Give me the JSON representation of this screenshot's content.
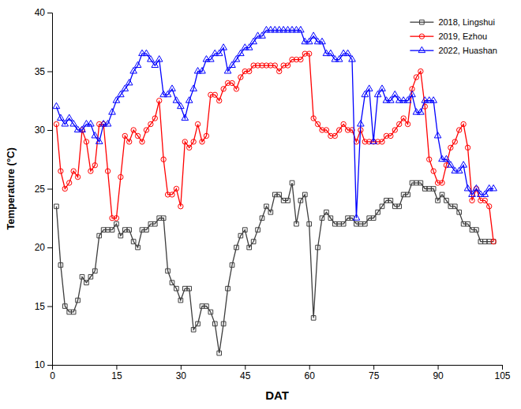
{
  "chart_data": {
    "type": "line",
    "xlabel": "DAT",
    "ylabel": "Temperature (°C)",
    "x": [
      1,
      2,
      3,
      4,
      5,
      6,
      7,
      8,
      9,
      10,
      11,
      12,
      13,
      14,
      15,
      16,
      17,
      18,
      19,
      20,
      21,
      22,
      23,
      24,
      25,
      26,
      27,
      28,
      29,
      30,
      31,
      32,
      33,
      34,
      35,
      36,
      37,
      38,
      39,
      40,
      41,
      42,
      43,
      44,
      45,
      46,
      47,
      48,
      49,
      50,
      51,
      52,
      53,
      54,
      55,
      56,
      57,
      58,
      59,
      60,
      61,
      62,
      63,
      64,
      65,
      66,
      67,
      68,
      69,
      70,
      71,
      72,
      73,
      74,
      75,
      76,
      77,
      78,
      79,
      80,
      81,
      82,
      83,
      84,
      85,
      86,
      87,
      88,
      89,
      90,
      91,
      92,
      93,
      94,
      95,
      96,
      97,
      98,
      99,
      100,
      101,
      102,
      103
    ],
    "series": [
      {
        "name": "2018, Lingshui",
        "color": "#3d3d3d",
        "marker": "square",
        "values": [
          23.5,
          18.5,
          15.0,
          14.5,
          14.5,
          15.5,
          17.5,
          17.0,
          17.5,
          18.0,
          21.0,
          21.5,
          21.5,
          21.5,
          22.0,
          21.0,
          21.5,
          21.5,
          20.5,
          20.0,
          21.5,
          21.5,
          22.0,
          22.0,
          22.5,
          22.5,
          18.0,
          17.0,
          16.5,
          15.5,
          16.5,
          16.5,
          13.0,
          13.5,
          15.0,
          15.0,
          14.5,
          13.5,
          11.0,
          13.5,
          16.5,
          18.5,
          20.0,
          21.0,
          21.5,
          20.0,
          20.5,
          21.5,
          22.5,
          23.5,
          23.0,
          24.5,
          24.5,
          24.0,
          24.0,
          25.5,
          22.0,
          24.0,
          24.5,
          22.0,
          14.0,
          20.0,
          22.5,
          23.0,
          22.5,
          22.0,
          22.0,
          22.0,
          22.5,
          22.5,
          22.0,
          22.0,
          22.0,
          22.5,
          22.5,
          23.0,
          23.5,
          24.0,
          24.0,
          23.5,
          23.5,
          24.5,
          24.5,
          25.5,
          25.5,
          25.5,
          25.0,
          25.0,
          25.0,
          24.0,
          24.5,
          24.0,
          23.5,
          23.5,
          23.0,
          22.0,
          22.0,
          21.5,
          21.5,
          20.5,
          20.5,
          20.5,
          20.5
        ]
      },
      {
        "name": "2019, Ezhou",
        "color": "#ff0000",
        "marker": "circle",
        "values": [
          30.5,
          26.5,
          25.0,
          25.5,
          26.5,
          26.0,
          30.0,
          29.0,
          26.5,
          27.0,
          30.5,
          30.5,
          26.5,
          22.5,
          22.5,
          26.0,
          29.5,
          29.0,
          30.0,
          29.5,
          29.0,
          30.0,
          30.5,
          31.0,
          32.5,
          27.5,
          24.5,
          24.5,
          25.0,
          23.5,
          29.0,
          28.5,
          29.0,
          30.5,
          29.0,
          29.5,
          33.0,
          33.0,
          32.5,
          33.5,
          34.0,
          34.0,
          33.5,
          34.5,
          35.0,
          35.0,
          35.5,
          35.5,
          35.5,
          35.5,
          35.5,
          35.5,
          35.0,
          35.5,
          35.5,
          36.0,
          36.0,
          36.0,
          36.5,
          36.5,
          31.0,
          30.5,
          30.0,
          30.0,
          29.5,
          29.5,
          30.0,
          30.5,
          30.0,
          30.0,
          29.0,
          30.0,
          29.0,
          29.0,
          29.0,
          29.0,
          29.0,
          29.5,
          29.5,
          30.0,
          30.5,
          31.0,
          30.5,
          33.5,
          34.5,
          35.0,
          32.0,
          27.5,
          26.5,
          25.5,
          25.5,
          27.0,
          28.5,
          29.0,
          30.0,
          30.5,
          28.5,
          24.0,
          25.0,
          24.0,
          24.0,
          23.5,
          20.5
        ]
      },
      {
        "name": "2022, Huashan",
        "color": "#0000ff",
        "marker": "triangle",
        "values": [
          32.0,
          31.0,
          30.5,
          31.0,
          30.5,
          30.0,
          30.0,
          30.5,
          30.5,
          29.5,
          29.0,
          30.5,
          30.5,
          31.5,
          32.5,
          33.0,
          33.5,
          34.0,
          35.0,
          35.5,
          36.5,
          36.5,
          36.0,
          35.5,
          36.0,
          33.0,
          33.0,
          33.5,
          32.5,
          32.0,
          31.0,
          32.5,
          33.5,
          35.0,
          35.0,
          36.0,
          36.0,
          36.5,
          36.5,
          37.0,
          35.0,
          35.5,
          36.0,
          36.5,
          37.0,
          37.0,
          37.5,
          38.0,
          38.0,
          38.5,
          38.5,
          38.5,
          38.5,
          38.5,
          38.5,
          38.5,
          38.5,
          38.5,
          37.5,
          37.5,
          38.0,
          37.5,
          37.5,
          36.5,
          36.5,
          36.0,
          36.0,
          36.5,
          36.5,
          36.0,
          22.5,
          30.5,
          33.0,
          33.5,
          29.0,
          33.0,
          33.5,
          32.5,
          32.5,
          33.0,
          32.5,
          32.5,
          32.5,
          33.0,
          31.5,
          31.5,
          32.5,
          32.5,
          32.5,
          29.5,
          27.5,
          27.5,
          27.0,
          26.5,
          26.5,
          27.0,
          25.0,
          24.5,
          25.0,
          24.5,
          24.5,
          25.0,
          25.0
        ]
      }
    ],
    "xlim": [
      0,
      105
    ],
    "ylim": [
      10,
      40
    ],
    "xticks": [
      0,
      15,
      30,
      45,
      60,
      75,
      90,
      105
    ],
    "yticks": [
      10,
      15,
      20,
      25,
      30,
      35,
      40
    ],
    "legend": "upper right",
    "grid": false
  }
}
